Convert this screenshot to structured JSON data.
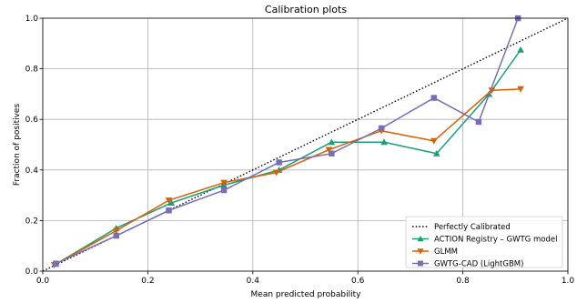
{
  "chart_data": {
    "type": "line",
    "title": "Calibration plots",
    "xlabel": "Mean predicted probability",
    "ylabel": "Fraction of positives",
    "xlim": [
      0,
      1
    ],
    "ylim": [
      0,
      1
    ],
    "xticks": [
      "0.0",
      "0.2",
      "0.4",
      "0.6",
      "0.8",
      "1.0"
    ],
    "yticks": [
      "0.0",
      "0.2",
      "0.4",
      "0.6",
      "0.8",
      "1.0"
    ],
    "grid": true,
    "legend_position": "lower-right",
    "series": [
      {
        "name": "Perfectly Calibrated",
        "style": "dotted",
        "color": "#000000",
        "marker": "none",
        "x": [
          0,
          1
        ],
        "y": [
          0,
          1
        ]
      },
      {
        "name": "ACTION Registry – GWTG model",
        "style": "solid",
        "color": "#1b9e77",
        "marker": "triangle-up",
        "x": [
          0.025,
          0.14,
          0.245,
          0.345,
          0.45,
          0.55,
          0.65,
          0.75,
          0.85,
          0.91
        ],
        "y": [
          0.028,
          0.17,
          0.27,
          0.34,
          0.4,
          0.51,
          0.51,
          0.465,
          0.7,
          0.875
        ]
      },
      {
        "name": "GLMM",
        "style": "solid",
        "color": "#d95f02",
        "marker": "triangle-down",
        "x": [
          0.022,
          0.14,
          0.24,
          0.345,
          0.445,
          0.545,
          0.645,
          0.745,
          0.855,
          0.91
        ],
        "y": [
          0.025,
          0.16,
          0.28,
          0.35,
          0.39,
          0.48,
          0.555,
          0.515,
          0.715,
          0.72
        ]
      },
      {
        "name": "GWTG-CAD (LightGBM)",
        "style": "solid",
        "color": "#7570b3",
        "marker": "square",
        "x": [
          0.025,
          0.14,
          0.24,
          0.345,
          0.45,
          0.55,
          0.645,
          0.745,
          0.83,
          0.905
        ],
        "y": [
          0.03,
          0.14,
          0.24,
          0.32,
          0.43,
          0.465,
          0.565,
          0.685,
          0.59,
          1.0
        ]
      }
    ]
  }
}
